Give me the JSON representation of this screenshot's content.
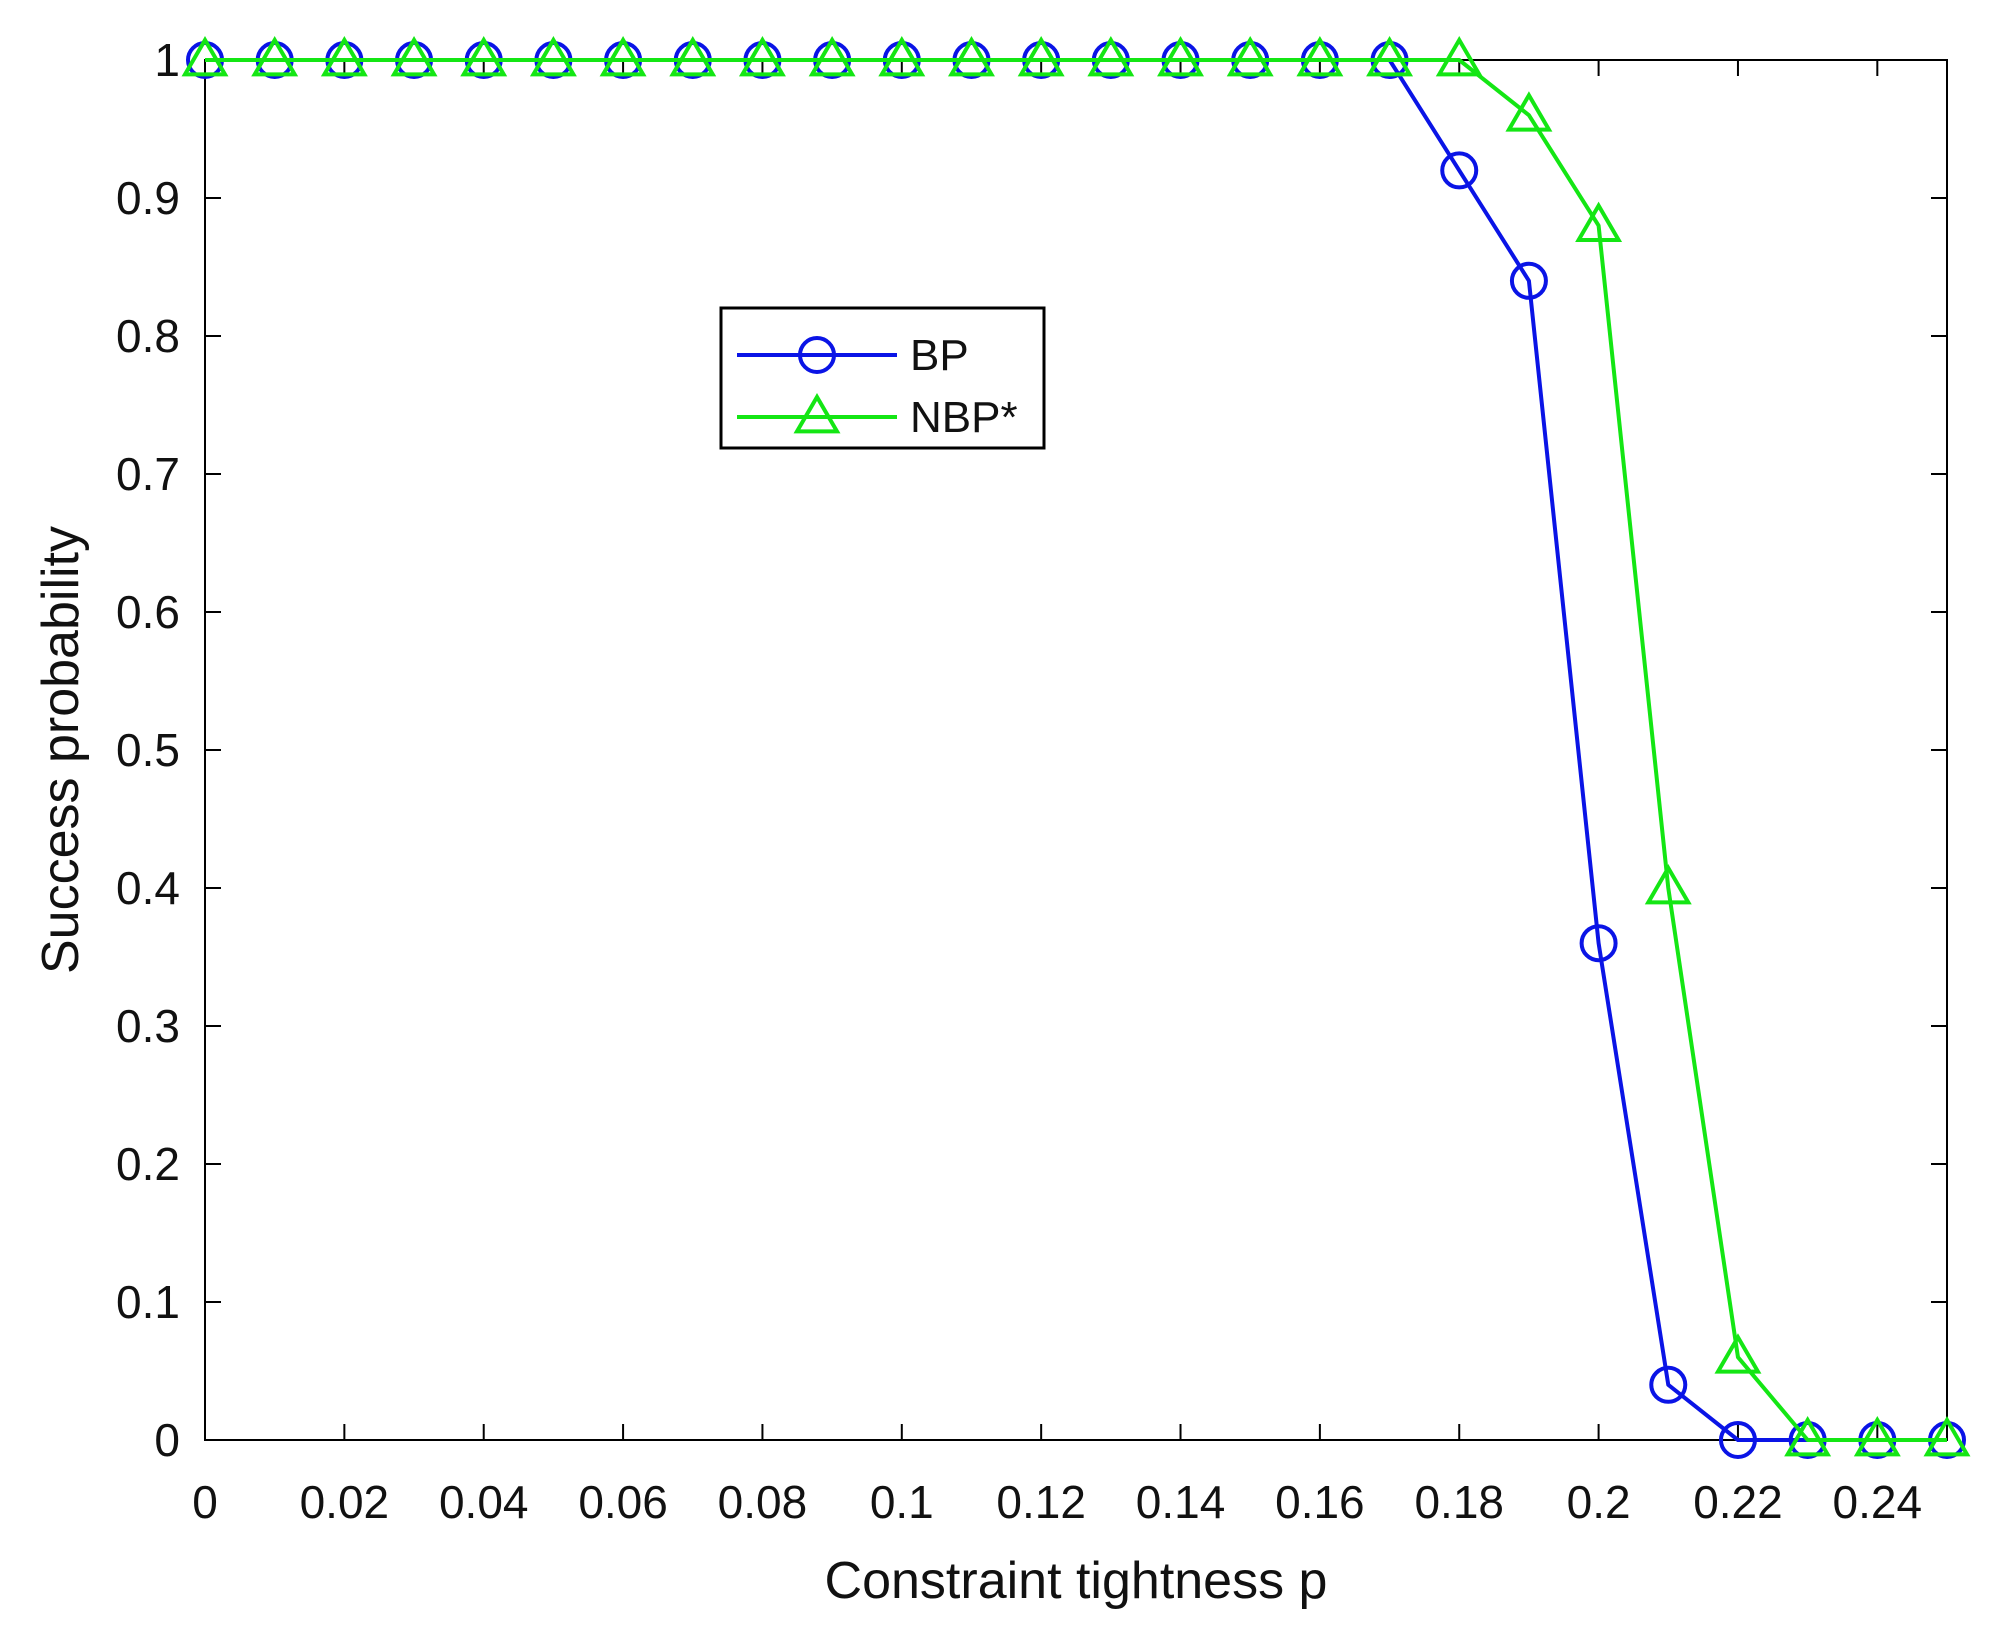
{
  "chart_data": {
    "type": "line",
    "title": "",
    "xlabel": "Constraint tightness p",
    "ylabel": "Success probability",
    "xlim": [
      0,
      0.25
    ],
    "ylim": [
      0,
      1
    ],
    "x_ticks": [
      0,
      0.02,
      0.04,
      0.06,
      0.08,
      0.1,
      0.12,
      0.14,
      0.16,
      0.18,
      0.2,
      0.22,
      0.24
    ],
    "x_tick_labels": [
      "0",
      "0.02",
      "0.04",
      "0.06",
      "0.08",
      "0.1",
      "0.12",
      "0.14",
      "0.16",
      "0.18",
      "0.2",
      "0.22",
      "0.24"
    ],
    "y_ticks": [
      0,
      0.1,
      0.2,
      0.3,
      0.4,
      0.5,
      0.6,
      0.7,
      0.8,
      0.9,
      1
    ],
    "y_tick_labels": [
      "0",
      "0.1",
      "0.2",
      "0.3",
      "0.4",
      "0.5",
      "0.6",
      "0.7",
      "0.8",
      "0.9",
      "1"
    ],
    "grid": false,
    "legend_position": "upper-center-left",
    "x": [
      0,
      0.01,
      0.02,
      0.03,
      0.04,
      0.05,
      0.06,
      0.07,
      0.08,
      0.09,
      0.1,
      0.11,
      0.12,
      0.13,
      0.14,
      0.15,
      0.16,
      0.17,
      0.18,
      0.19,
      0.2,
      0.21,
      0.22,
      0.23,
      0.24,
      0.25
    ],
    "series": [
      {
        "name": "BP",
        "color": "#0a14e6",
        "marker": "circle",
        "values": [
          1,
          1,
          1,
          1,
          1,
          1,
          1,
          1,
          1,
          1,
          1,
          1,
          1,
          1,
          1,
          1,
          1,
          1,
          0.92,
          0.84,
          0.36,
          0.04,
          0,
          0,
          0,
          0
        ]
      },
      {
        "name": "NBP*",
        "color": "#14e614",
        "marker": "triangle",
        "values": [
          1,
          1,
          1,
          1,
          1,
          1,
          1,
          1,
          1,
          1,
          1,
          1,
          1,
          1,
          1,
          1,
          1,
          1,
          1,
          0.96,
          0.88,
          0.4,
          0.06,
          0,
          0,
          0
        ]
      }
    ]
  }
}
